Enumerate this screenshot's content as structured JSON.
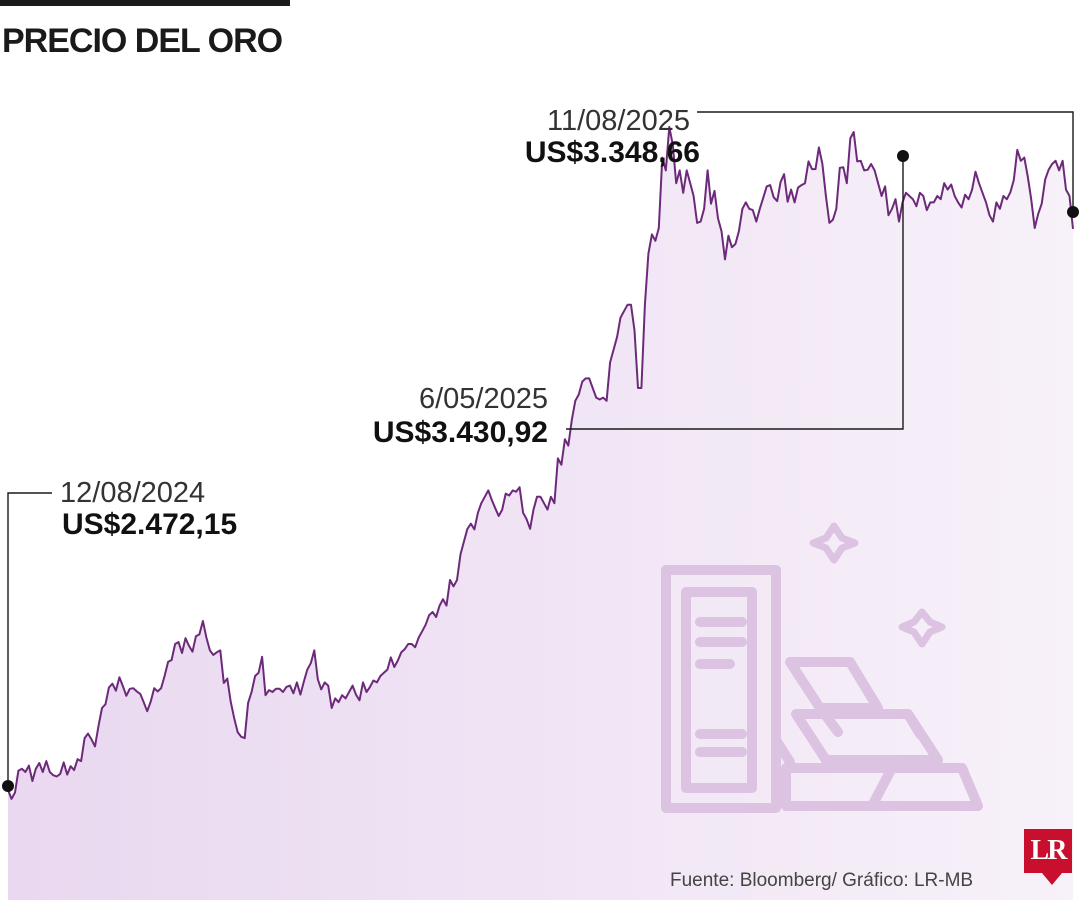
{
  "title": "PRECIO DEL ORO",
  "source": "Fuente: Bloomberg/ Gráfico: LR-MB",
  "logo": "LR",
  "colors": {
    "line": "#6d2a7a",
    "fill_top": "#e9d8f0",
    "illustration": "#dcc3e2"
  },
  "illustration_icon": "gold-bars-icon",
  "chart_data": {
    "type": "area",
    "x_start": "12/08/2024",
    "x_end": "11/08/2025",
    "ylim": [
      2300,
      3550
    ],
    "grid": false,
    "annotations": [
      {
        "date": "12/08/2024",
        "value_label": "US$2.472,15",
        "value": 2472.15
      },
      {
        "date": "6/05/2025",
        "value_label": "US$3.430,92",
        "value": 3430.92
      },
      {
        "date": "11/08/2025",
        "value_label": "US$3.348,66",
        "value": 3348.66
      }
    ],
    "series": [
      {
        "values": [
          2472,
          2458,
          2468,
          2502,
          2505,
          2500,
          2510,
          2486,
          2505,
          2514,
          2500,
          2517,
          2500,
          2495,
          2493,
          2497,
          2515,
          2496,
          2509,
          2503,
          2520,
          2517,
          2553,
          2560,
          2551,
          2540,
          2572,
          2600,
          2606,
          2632,
          2638,
          2627,
          2648,
          2634,
          2619,
          2630,
          2631,
          2626,
          2622,
          2609,
          2595,
          2610,
          2631,
          2626,
          2631,
          2650,
          2672,
          2675,
          2700,
          2703,
          2686,
          2709,
          2697,
          2688,
          2712,
          2715,
          2736,
          2710,
          2690,
          2683,
          2687,
          2690,
          2639,
          2646,
          2610,
          2584,
          2562,
          2555,
          2553,
          2608,
          2625,
          2650,
          2655,
          2680,
          2620,
          2628,
          2625,
          2630,
          2630,
          2625,
          2633,
          2635,
          2623,
          2640,
          2621,
          2641,
          2660,
          2670,
          2690,
          2645,
          2629,
          2640,
          2635,
          2600,
          2615,
          2609,
          2620,
          2615,
          2625,
          2635,
          2621,
          2612,
          2640,
          2625,
          2633,
          2643,
          2640,
          2650,
          2655,
          2660,
          2679,
          2664,
          2674,
          2687,
          2692,
          2700,
          2700,
          2695,
          2710,
          2720,
          2730,
          2745,
          2750,
          2742,
          2760,
          2770,
          2760,
          2800,
          2790,
          2800,
          2840,
          2860,
          2880,
          2888,
          2879,
          2905,
          2920,
          2930,
          2940,
          2925,
          2912,
          2900,
          2910,
          2935,
          2932,
          2940,
          2938,
          2945,
          2905,
          2895,
          2880,
          2910,
          2930,
          2930,
          2920,
          2910,
          2930,
          2920,
          2990,
          2980,
          3020,
          3010,
          3050,
          3080,
          3090,
          3110,
          3115,
          3115,
          3100,
          3085,
          3082,
          3085,
          3080,
          3140,
          3160,
          3180,
          3210,
          3220,
          3230,
          3230,
          3190,
          3100,
          3100,
          3230,
          3310,
          3340,
          3330,
          3350,
          3460,
          3440,
          3508,
          3480,
          3420,
          3440,
          3405,
          3440,
          3420,
          3400,
          3358,
          3360,
          3380,
          3440,
          3388,
          3408,
          3365,
          3345,
          3301,
          3338,
          3320,
          3325,
          3345,
          3380,
          3390,
          3380,
          3378,
          3360,
          3380,
          3397,
          3415,
          3417,
          3398,
          3392,
          3422,
          3434,
          3391,
          3410,
          3390,
          3413,
          3417,
          3420,
          3454,
          3442,
          3442,
          3476,
          3450,
          3400,
          3358,
          3363,
          3380,
          3444,
          3445,
          3420,
          3490,
          3500,
          3454,
          3455,
          3440,
          3441,
          3450,
          3440,
          3420,
          3400,
          3415,
          3370,
          3380,
          3395,
          3360,
          3390,
          3405,
          3400,
          3395,
          3384,
          3405,
          3400,
          3378,
          3390,
          3390,
          3400,
          3395,
          3420,
          3410,
          3418,
          3400,
          3390,
          3382,
          3402,
          3395,
          3410,
          3438,
          3420,
          3405,
          3390,
          3370,
          3360,
          3390,
          3380,
          3400,
          3395,
          3406,
          3425,
          3472,
          3455,
          3460,
          3430,
          3395,
          3350,
          3372,
          3388,
          3426,
          3441,
          3450,
          3455,
          3440,
          3455,
          3410,
          3400,
          3348.66
        ]
      }
    ]
  }
}
